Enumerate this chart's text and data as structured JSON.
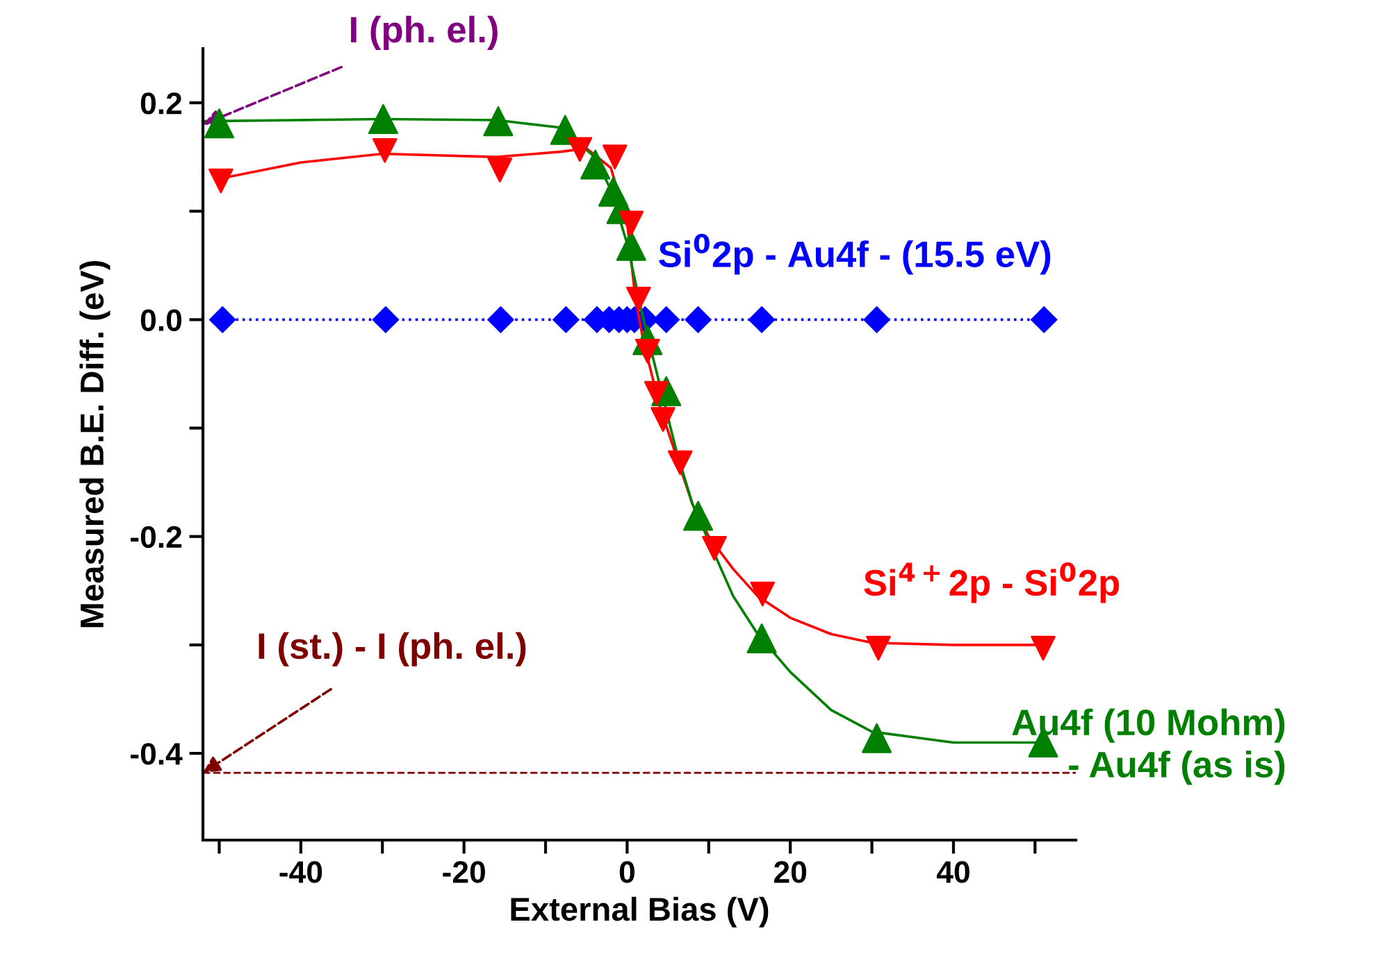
{
  "chart_data": {
    "type": "scatter",
    "xlabel": "External Bias (V)",
    "ylabel": "Measured B.E. Diff. (eV)",
    "xlim": [
      -52,
      55
    ],
    "ylim": [
      -0.48,
      0.25
    ],
    "xticks": [
      {
        "value": -50,
        "label": null
      },
      -40,
      {
        "value": -30,
        "label": null
      },
      -20,
      {
        "value": -10,
        "label": null
      },
      0,
      {
        "value": 10,
        "label": null
      },
      20,
      {
        "value": 30,
        "label": null
      },
      40,
      {
        "value": 50,
        "label": null
      }
    ],
    "yticks": [
      -0.4,
      {
        "value": -0.3,
        "label": null
      },
      -0.2,
      {
        "value": -0.1,
        "label": null
      },
      {
        "value": 0,
        "label": "0.0"
      },
      {
        "value": 0.1,
        "label": null
      },
      0.2
    ],
    "grid": false,
    "series": [
      {
        "name": "Si$^{0}$2p - Au4f - (15.5 eV)",
        "type": "line",
        "color": "#0000ff",
        "marker": "diamond",
        "line_style": "dotted",
        "x": [
          -49.6,
          -29.6,
          -15.5,
          -7.5,
          -3.7,
          -2.2,
          -1,
          0,
          0.9,
          2.2,
          4.8,
          8.7,
          16.5,
          30.6,
          51.1
        ],
        "values": [
          0,
          0,
          0,
          0,
          0,
          0,
          0,
          0,
          0,
          0,
          0,
          0,
          0,
          0,
          0
        ]
      },
      {
        "name": "Si$^{4+}$2p - Si$^{0}$2p",
        "color": "#ff0000",
        "marker": "triangle_down",
        "x": [
          -49.8,
          -29.7,
          -15.6,
          -5.8,
          -1.5,
          0.5,
          1.4,
          2.5,
          3.6,
          4.4,
          6.5,
          10.7,
          16.6,
          30.8,
          51
        ],
        "values": [
          0.128,
          0.156,
          0.138,
          0.157,
          0.15,
          0.089,
          0.019,
          -0.029,
          -0.068,
          -0.092,
          -0.132,
          -0.211,
          -0.253,
          -0.303,
          -0.303
        ]
      },
      {
        "name": "Au4f (10 Mohm)\n- Au4f (as is)",
        "color": "#008000",
        "marker": "triangle",
        "x": [
          -50,
          -29.9,
          -15.8,
          -7.6,
          -3.9,
          -1.7,
          -0.7,
          0.5,
          2.5,
          4.8,
          8.7,
          16.5,
          30.6,
          51
        ],
        "values": [
          0.181,
          0.185,
          0.183,
          0.175,
          0.143,
          0.118,
          0.102,
          0.068,
          -0.019,
          -0.066,
          -0.181,
          -0.294,
          -0.386,
          -0.39
        ]
      },
      {
        "type": "line",
        "color": "#ff0000",
        "marker": "none",
        "line_style": "solid",
        "x": [
          -50,
          -40,
          -30,
          -16,
          -8,
          -5,
          -2,
          0,
          1,
          2,
          4,
          6,
          8,
          10,
          13,
          16,
          20,
          25,
          30,
          40,
          50
        ],
        "values": [
          0.13,
          0.145,
          0.153,
          0.15,
          0.155,
          0.158,
          0.14,
          0.09,
          0.02,
          -0.02,
          -0.08,
          -0.125,
          -0.17,
          -0.2,
          -0.23,
          -0.255,
          -0.275,
          -0.29,
          -0.298,
          -0.3,
          -0.3
        ]
      },
      {
        "type": "line",
        "color": "#008000",
        "marker": "none",
        "line_style": "solid",
        "x": [
          -52,
          -30,
          -16,
          -8,
          -4,
          -2,
          0,
          2,
          4,
          6,
          8,
          13,
          16,
          20,
          25,
          30,
          40,
          50
        ],
        "values": [
          0.183,
          0.185,
          0.184,
          0.177,
          0.15,
          0.12,
          0.07,
          0.0,
          -0.06,
          -0.12,
          -0.17,
          -0.255,
          -0.29,
          -0.325,
          -0.36,
          -0.38,
          -0.39,
          -0.39
        ]
      }
    ],
    "ref_lines": [
      {
        "axis": "y",
        "value": -0.418,
        "color": "#800000",
        "line_style": "dashed"
      }
    ],
    "annotations": [
      {
        "text": "I (ph. el.)",
        "x": -52,
        "y": 0.18
      },
      {
        "text": "I (st.) - I (ph. el.)",
        "x": -52,
        "y": -0.418
      }
    ]
  }
}
